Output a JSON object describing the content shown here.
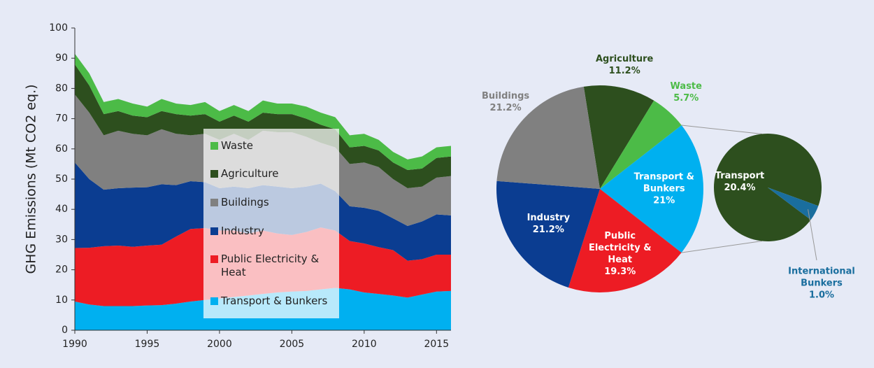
{
  "chart_data": [
    {
      "type": "area",
      "stacked": true,
      "y_label": "GHG Emissions (Mt CO2 eq.)",
      "x": [
        1990,
        1991,
        1992,
        1993,
        1994,
        1995,
        1996,
        1997,
        1998,
        1999,
        2000,
        2001,
        2002,
        2003,
        2004,
        2005,
        2006,
        2007,
        2008,
        2009,
        2010,
        2011,
        2012,
        2013,
        2014,
        2015,
        2016
      ],
      "xlim": [
        1990,
        2016
      ],
      "xticks": [
        1990,
        1995,
        2000,
        2005,
        2010,
        2015
      ],
      "ylim": [
        0,
        100
      ],
      "yticks": [
        0,
        10,
        20,
        30,
        40,
        50,
        60,
        70,
        80,
        90,
        100
      ],
      "series": [
        {
          "name": "Transport & Bunkers",
          "color": "#00b0f0",
          "values": [
            9.5,
            8.5,
            8,
            8,
            8,
            8.2,
            8.3,
            8.8,
            9.5,
            10,
            10.5,
            11,
            11.5,
            12,
            12.5,
            12.8,
            13,
            13.5,
            14,
            13.5,
            12.5,
            12,
            11.5,
            10.8,
            11.8,
            12.8,
            13
          ]
        },
        {
          "name": "Public Electricity & Heat",
          "color": "#ed1c24",
          "values": [
            17.7,
            18.8,
            19.8,
            20,
            19.6,
            19.8,
            20,
            22.2,
            24,
            23.8,
            22.5,
            22,
            20.5,
            21,
            19.5,
            18.7,
            19.5,
            20.5,
            19,
            16,
            16.2,
            15.5,
            15,
            12.2,
            11.7,
            12.2,
            12
          ]
        },
        {
          "name": "Industry",
          "color": "#0b3d91",
          "values": [
            28.3,
            22.7,
            18.7,
            19,
            19.6,
            19.3,
            20,
            17,
            15.8,
            15.2,
            14,
            14.5,
            15,
            15,
            15.5,
            15.5,
            15,
            14.5,
            13,
            11.5,
            11.8,
            12,
            10.5,
            11.5,
            12.5,
            13.3,
            13
          ]
        },
        {
          "name": "Buildings",
          "color": "#808080",
          "values": [
            22.5,
            22,
            18,
            19,
            17.8,
            17.2,
            18.2,
            17,
            15.2,
            16,
            16,
            17.5,
            16,
            18,
            18,
            18.5,
            16.5,
            13.5,
            14.5,
            14,
            15,
            14.5,
            13,
            12.5,
            11.5,
            12.2,
            13
          ]
        },
        {
          "name": "Agriculture",
          "color": "#2d4f1e",
          "values": [
            10,
            9,
            7,
            6.5,
            6,
            6,
            6,
            6.5,
            6.5,
            6.5,
            6,
            6,
            6,
            6,
            6,
            6,
            6,
            6,
            6,
            5.5,
            5.5,
            5.5,
            5.5,
            6,
            6,
            6.5,
            6.5
          ]
        },
        {
          "name": "Waste",
          "color": "#4cbb47",
          "values": [
            3.5,
            4,
            4,
            4,
            4,
            3.5,
            4,
            3.5,
            3.5,
            4,
            3.5,
            3.5,
            3.5,
            4,
            3.5,
            3.5,
            4,
            4,
            4,
            4,
            4,
            3.5,
            3.5,
            3.5,
            4,
            3.5,
            3.5
          ]
        }
      ]
    },
    {
      "type": "pie",
      "categories": [
        "Agriculture",
        "Waste",
        "Transport & Bunkers",
        "Public Electricity & Heat",
        "Industry",
        "Buildings"
      ],
      "values": [
        11.2,
        5.7,
        21,
        19.3,
        21.2,
        21.2
      ],
      "value_labels": [
        "11.2%",
        "5.7%",
        "21%",
        "19.3%",
        "21.2%",
        "21.2%"
      ],
      "colors": [
        "#2d4f1e",
        "#4cbb47",
        "#00b0f0",
        "#ed1c24",
        "#0b3d91",
        "#808080"
      ],
      "secondary": {
        "categories": [
          "Transport",
          "International Bunkers"
        ],
        "values": [
          20.4,
          1.0
        ],
        "value_labels": [
          "20.4%",
          "1.0%"
        ],
        "colors": [
          "#2d4f1e",
          "#1a6e9e"
        ]
      }
    }
  ]
}
